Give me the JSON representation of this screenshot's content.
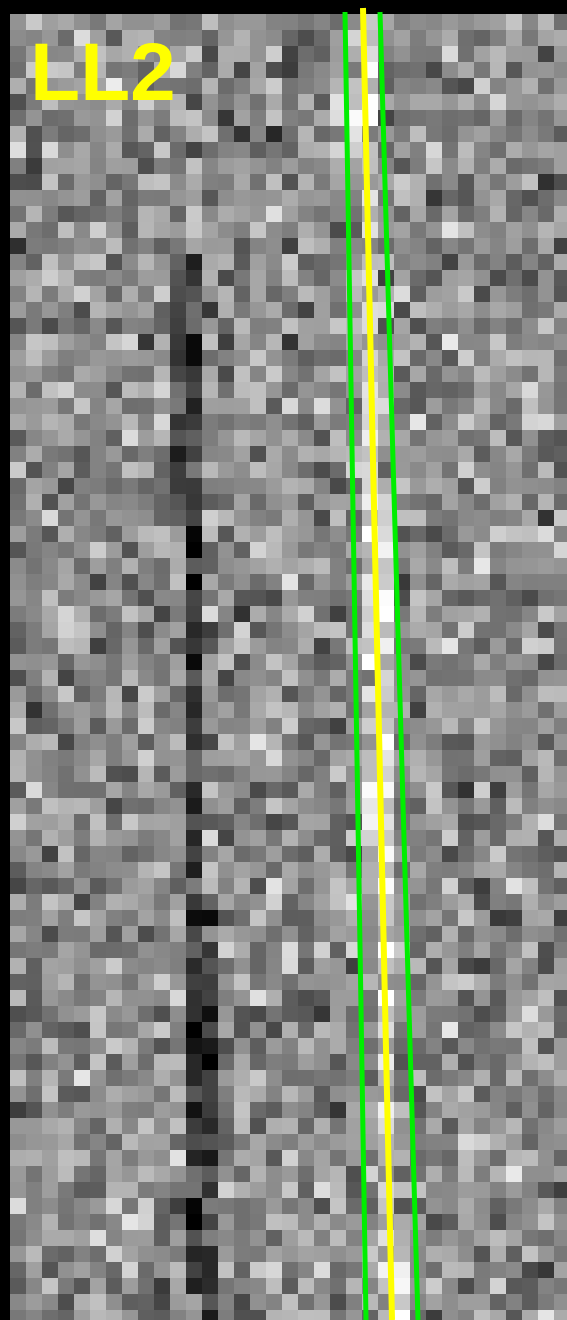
{
  "label": "LL2"
}
